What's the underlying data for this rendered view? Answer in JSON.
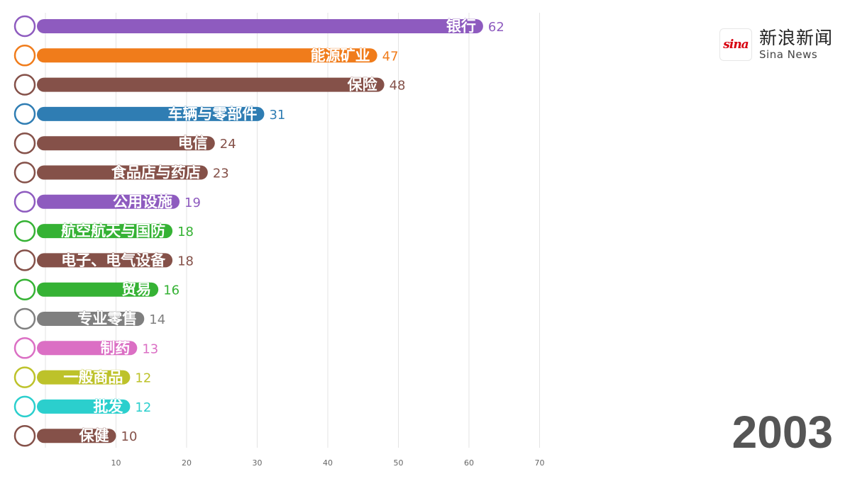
{
  "brand": {
    "logo_mark": "sina",
    "name_cn": "新浪新闻",
    "name_en": "Sina News",
    "logo_color": "#d7000f"
  },
  "year": "2003",
  "chart_data": {
    "type": "bar",
    "orientation": "horizontal",
    "xlim": [
      0,
      70
    ],
    "x_ticks": [
      10,
      20,
      30,
      40,
      50,
      60,
      70
    ],
    "grid": true,
    "categories": [
      "银行",
      "能源矿业",
      "保险",
      "车辆与零部件",
      "电信",
      "食品店与药店",
      "公用设施",
      "航空航天与国防",
      "电子、电气设备",
      "贸易",
      "专业零售",
      "制药",
      "一般商品",
      "批发",
      "保健"
    ],
    "values": [
      62,
      47,
      48,
      31,
      24,
      23,
      19,
      18,
      18,
      16,
      14,
      13,
      12,
      12,
      10
    ],
    "colors": [
      "#8e5bbf",
      "#f07c1b",
      "#855149",
      "#2f7db3",
      "#855149",
      "#855149",
      "#8e5bbf",
      "#35b234",
      "#855149",
      "#35b234",
      "#7f7f7f",
      "#db6fc4",
      "#bdc22a",
      "#2bcfcd",
      "#855149"
    ]
  }
}
